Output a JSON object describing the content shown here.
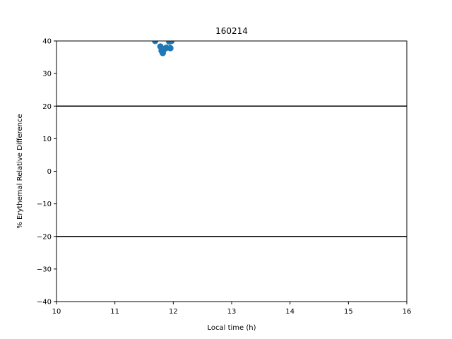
{
  "chart_data": {
    "type": "scatter",
    "title": "160214",
    "xlabel": "Local time (h)",
    "ylabel": "% Erythemal Relative Difference",
    "xlim": [
      10,
      16
    ],
    "ylim": [
      -40,
      40
    ],
    "xticks": [
      10,
      11,
      12,
      13,
      14,
      15,
      16
    ],
    "yticks": [
      -40,
      -30,
      -20,
      -10,
      0,
      10,
      20,
      30,
      40
    ],
    "xtick_labels": [
      "10",
      "11",
      "12",
      "13",
      "14",
      "15",
      "16"
    ],
    "ytick_labels": [
      "−40",
      "−30",
      "−20",
      "−10",
      "0",
      "10",
      "20",
      "30",
      "40"
    ],
    "grid": false,
    "reference_lines": [
      20,
      -20
    ],
    "series": [
      {
        "color": "#1f77b4",
        "x": [
          11.69,
          11.78,
          11.8,
          11.82,
          11.85,
          11.88,
          11.93,
          11.95,
          11.97
        ],
        "y": [
          40.0,
          38.3,
          37.0,
          36.3,
          37.5,
          37.9,
          39.8,
          37.8,
          40.0
        ]
      }
    ]
  }
}
